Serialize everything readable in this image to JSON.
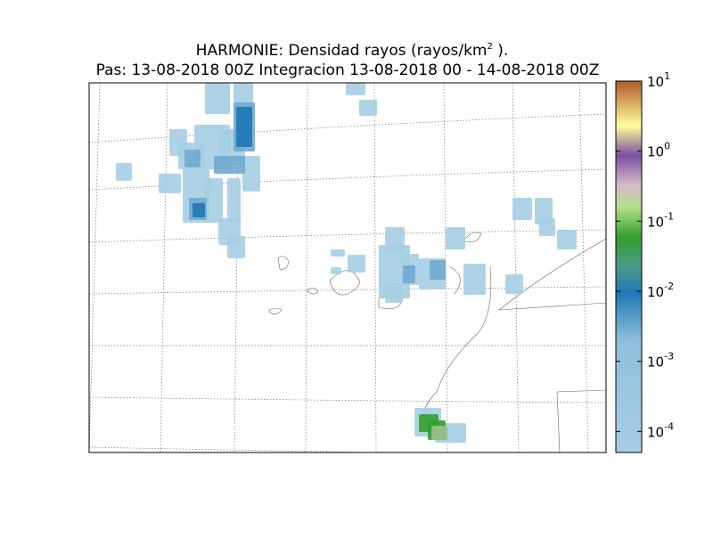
{
  "title": {
    "line1": "HARMONIE: Densidad rayos  (rayos/km",
    "line1_sup": "2",
    "line1_end": " ).",
    "line2": "Pas: 13-08-2018 00Z Integracion 13-08-2018 00 - 14-08-2018 00Z"
  },
  "colorbar": {
    "log": true,
    "lim": [
      5e-05,
      10
    ],
    "ticks": [
      {
        "value": 10,
        "label": "10",
        "exp": "1"
      },
      {
        "value": 1,
        "label": "10",
        "exp": "0"
      },
      {
        "value": 0.1,
        "label": "10",
        "exp": "-1"
      },
      {
        "value": 0.01,
        "label": "10",
        "exp": "-2"
      },
      {
        "value": 0.001,
        "label": "10",
        "exp": "-3"
      },
      {
        "value": 0.0001,
        "label": "10",
        "exp": "-4"
      }
    ]
  }
}
